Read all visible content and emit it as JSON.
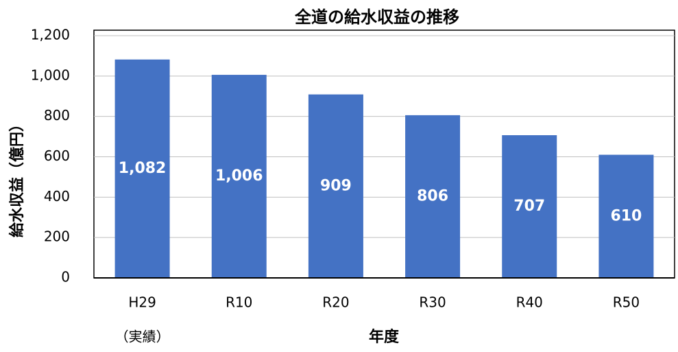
{
  "chart_data": {
    "type": "bar",
    "title": "全道の給水収益の推移",
    "x_label": "年度",
    "y_label": "給水収益（億円）",
    "categories": [
      "H29",
      "R10",
      "R20",
      "R30",
      "R40",
      "R50"
    ],
    "annotation": "（実績）",
    "values": [
      1082,
      1006,
      909,
      806,
      707,
      610
    ],
    "value_labels": [
      "1,082",
      "1,006",
      "909",
      "806",
      "707",
      "610"
    ],
    "color": "#4472c4",
    "ylim": [
      0,
      1200
    ],
    "yticks": [
      0,
      200,
      400,
      600,
      800,
      {
        "value": 1000,
        "label": "1,000"
      },
      {
        "value": 1200,
        "label": "1,200"
      }
    ],
    "grid": true
  }
}
